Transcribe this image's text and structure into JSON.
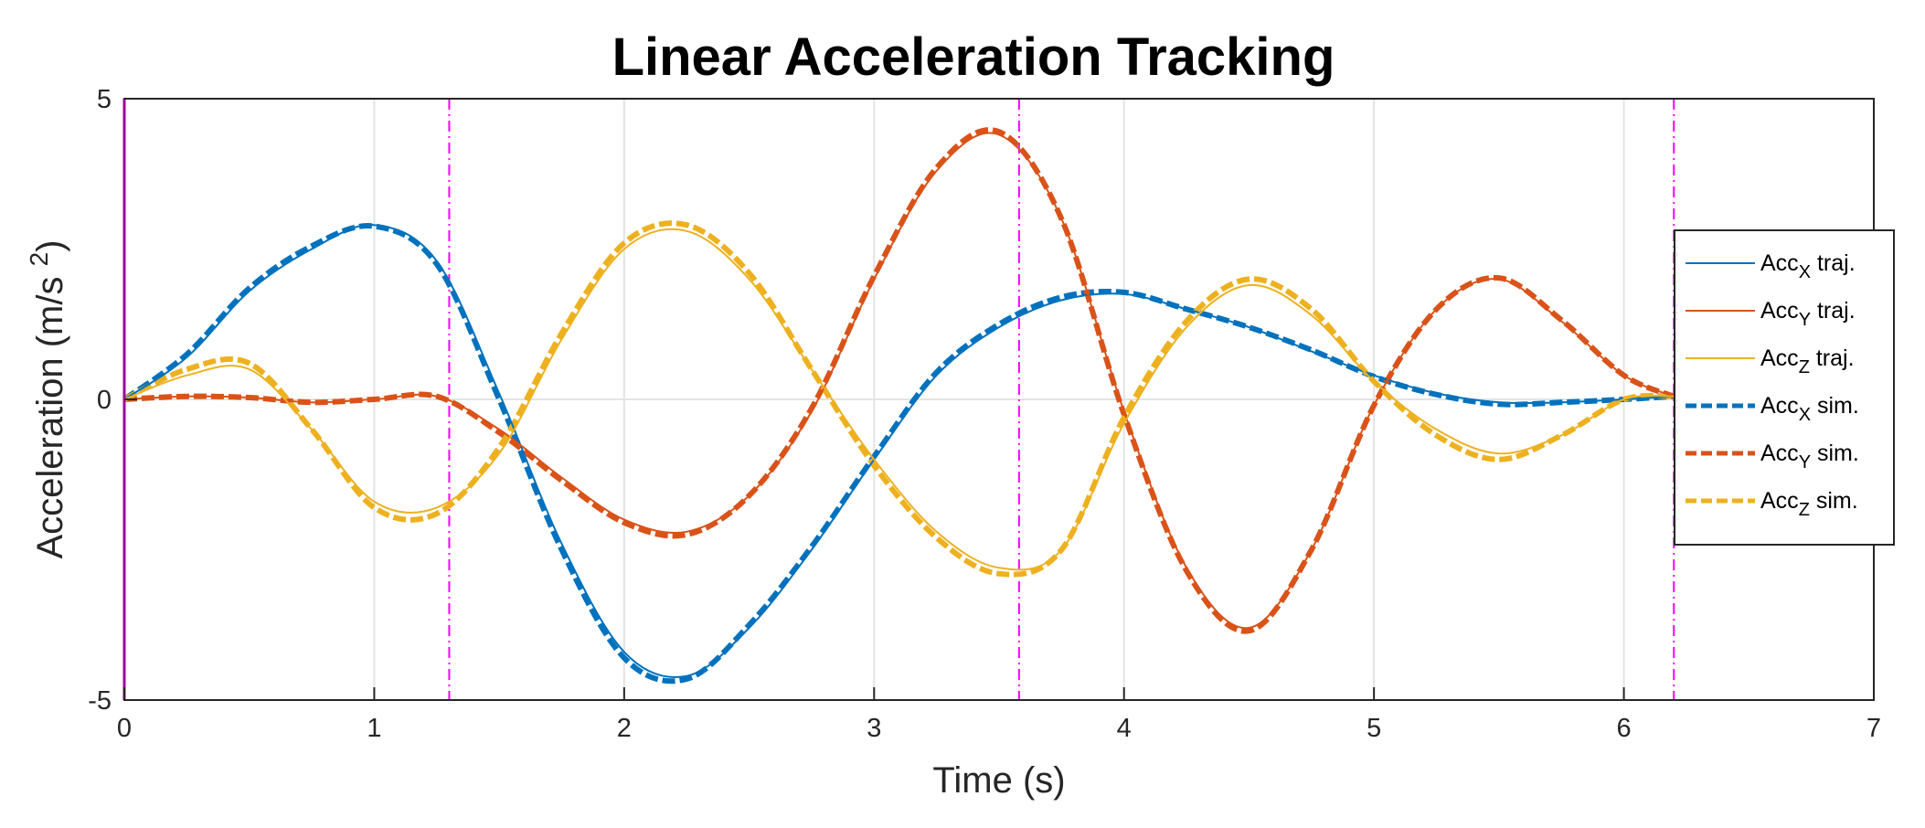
{
  "chart_data": {
    "type": "line",
    "title": "Linear Acceleration Tracking",
    "xlabel": "Time (s)",
    "ylabel": "Acceleration (m/s ",
    "ylabel_sup": "2",
    "ylabel_close": ")",
    "xlim": [
      0,
      7
    ],
    "ylim": [
      -5,
      5
    ],
    "xticks": [
      0,
      1,
      2,
      3,
      4,
      5,
      6,
      7
    ],
    "xtick_labels": [
      "0",
      "1",
      "2",
      "3",
      "4",
      "5",
      "6",
      "7"
    ],
    "yticks": [
      -5,
      0,
      5
    ],
    "ytick_labels": [
      "-5",
      "0",
      "5"
    ],
    "grid": true,
    "legend_position": "right",
    "vertical_markers": [
      1.3,
      3.58,
      6.2
    ],
    "marker_color": "#ff00ff",
    "x": [
      0,
      0.25,
      0.5,
      0.75,
      1.0,
      1.25,
      1.5,
      1.75,
      2.0,
      2.25,
      2.5,
      2.75,
      3.0,
      3.25,
      3.5,
      3.75,
      4.0,
      4.25,
      4.5,
      4.75,
      5.0,
      5.25,
      5.5,
      5.75,
      6.0,
      6.2
    ],
    "series": [
      {
        "name": "traj.",
        "axis": "X",
        "style": "solid",
        "color": "#0072bd",
        "values": [
          0,
          0.7,
          1.8,
          2.5,
          2.9,
          2.3,
          0.1,
          -2.4,
          -4.2,
          -4.6,
          -3.8,
          -2.5,
          -1.0,
          0.4,
          1.2,
          1.65,
          1.75,
          1.5,
          1.2,
          0.8,
          0.4,
          0.1,
          -0.05,
          -0.05,
          0.0,
          0.05
        ]
      },
      {
        "name": "traj.",
        "axis": "Y",
        "style": "solid",
        "color": "#d95319",
        "values": [
          0,
          0.05,
          0.03,
          -0.05,
          0.0,
          0.05,
          -0.5,
          -1.3,
          -2.0,
          -2.2,
          -1.6,
          -0.2,
          2.0,
          3.8,
          4.4,
          3.0,
          -0.2,
          -2.8,
          -3.8,
          -2.5,
          -0.1,
          1.5,
          2.0,
          1.3,
          0.4,
          0.05
        ]
      },
      {
        "name": "traj.",
        "axis": "Z",
        "style": "solid",
        "color": "#edb120",
        "values": [
          0,
          0.4,
          0.5,
          -0.5,
          -1.7,
          -1.8,
          -0.9,
          1.0,
          2.5,
          2.8,
          2.0,
          0.5,
          -1.0,
          -2.2,
          -2.8,
          -2.5,
          -0.4,
          1.2,
          1.9,
          1.4,
          0.3,
          -0.5,
          -0.9,
          -0.6,
          0.0,
          0.05
        ]
      },
      {
        "name": "sim.",
        "axis": "X",
        "style": "dashed",
        "color": "#0072bd",
        "values": [
          0,
          0.75,
          1.85,
          2.55,
          2.88,
          2.25,
          0.0,
          -2.5,
          -4.3,
          -4.65,
          -3.75,
          -2.45,
          -0.95,
          0.45,
          1.25,
          1.7,
          1.78,
          1.5,
          1.2,
          0.82,
          0.38,
          0.08,
          -0.08,
          -0.05,
          0.0,
          0.05
        ]
      },
      {
        "name": "sim.",
        "axis": "Y",
        "style": "dashed",
        "color": "#d95319",
        "values": [
          0,
          0.05,
          0.03,
          -0.05,
          0.0,
          0.05,
          -0.55,
          -1.35,
          -2.05,
          -2.25,
          -1.6,
          -0.15,
          2.05,
          3.85,
          4.45,
          3.0,
          -0.25,
          -2.85,
          -3.85,
          -2.5,
          -0.1,
          1.5,
          2.02,
          1.32,
          0.4,
          0.05
        ]
      },
      {
        "name": "sim.",
        "axis": "Z",
        "style": "dashed",
        "color": "#edb120",
        "values": [
          0,
          0.5,
          0.6,
          -0.5,
          -1.8,
          -1.9,
          -0.8,
          1.1,
          2.6,
          2.9,
          2.1,
          0.5,
          -1.1,
          -2.3,
          -2.9,
          -2.5,
          -0.3,
          1.3,
          2.0,
          1.5,
          0.3,
          -0.6,
          -1.0,
          -0.6,
          0.0,
          0.05
        ]
      }
    ]
  }
}
